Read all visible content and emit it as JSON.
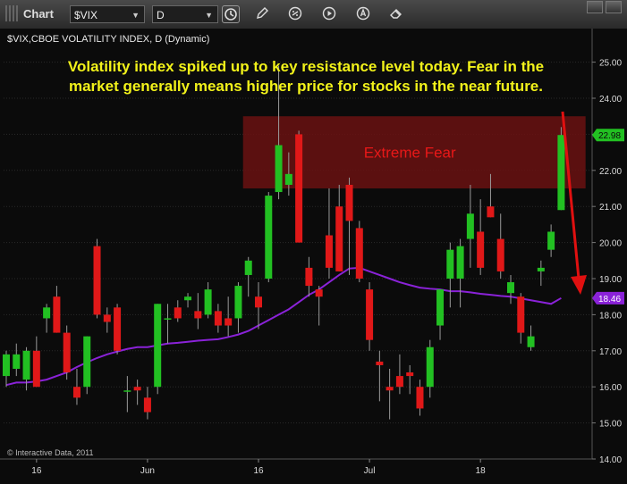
{
  "toolbar": {
    "title": "Chart",
    "symbol": "$VIX",
    "interval": "D",
    "icons": [
      "pin-icon",
      "clock-icon",
      "pencil-icon",
      "link-icon",
      "play-icon",
      "alert-icon",
      "eraser-icon",
      "minimize-icon",
      "maximize-icon"
    ]
  },
  "chart_header": "$VIX,CBOE VOLATILITY INDEX, D (Dynamic)",
  "annotation_line1": "Volatility index spiked up to key resistance level today.  Fear in the",
  "annotation_line2": "market generally means higher price for stocks in the near future.",
  "zone_label": "Extreme Fear",
  "copyright": "© Interactive Data, 2011",
  "colors": {
    "up": "#22c022",
    "down": "#e01818",
    "ma": "#8a22d8",
    "annotation": "#f2f21a",
    "zone_fill": "#6a1212",
    "zone_text": "#e81818",
    "last_price_box": "#22c022",
    "ma_box": "#8a22d8"
  },
  "chart_data": {
    "type": "candlestick",
    "title": "$VIX,CBOE VOLATILITY INDEX, D (Dynamic)",
    "y_ticks": [
      14.0,
      15.0,
      16.0,
      17.0,
      18.0,
      19.0,
      20.0,
      21.0,
      22.0,
      23.0,
      24.0,
      25.0
    ],
    "ylim": [
      13.7,
      25.8
    ],
    "x_tick_labels": [
      {
        "label": "16",
        "index": 3
      },
      {
        "label": "Jun",
        "index": 14
      },
      {
        "label": "16",
        "index": 25
      },
      {
        "label": "Jul",
        "index": 36
      },
      {
        "label": "18",
        "index": 47
      }
    ],
    "resistance_zone": {
      "low": 21.5,
      "high": 23.5,
      "label": "Extreme Fear",
      "from_index": 24,
      "to_index": 56
    },
    "last_price": "22.98",
    "ma_value": "18.46",
    "candles": [
      {
        "o": 16.3,
        "h": 17.0,
        "l": 16.0,
        "c": 16.9
      },
      {
        "o": 16.5,
        "h": 17.2,
        "l": 16.3,
        "c": 16.9
      },
      {
        "o": 16.2,
        "h": 17.1,
        "l": 15.9,
        "c": 17.0
      },
      {
        "o": 17.0,
        "h": 17.4,
        "l": 16.0,
        "c": 16.0
      },
      {
        "o": 17.9,
        "h": 18.3,
        "l": 17.5,
        "c": 18.2
      },
      {
        "o": 18.5,
        "h": 18.8,
        "l": 17.5,
        "c": 17.5
      },
      {
        "o": 17.5,
        "h": 17.7,
        "l": 16.2,
        "c": 16.4
      },
      {
        "o": 16.0,
        "h": 16.5,
        "l": 15.5,
        "c": 15.7
      },
      {
        "o": 16.0,
        "h": 17.4,
        "l": 15.8,
        "c": 17.4
      },
      {
        "o": 19.9,
        "h": 20.1,
        "l": 17.9,
        "c": 18.0
      },
      {
        "o": 18.0,
        "h": 18.2,
        "l": 17.5,
        "c": 17.8
      },
      {
        "o": 18.2,
        "h": 18.3,
        "l": 16.9,
        "c": 17.0
      },
      {
        "o": 15.9,
        "h": 16.3,
        "l": 15.3,
        "c": 15.9
      },
      {
        "o": 16.0,
        "h": 16.2,
        "l": 15.5,
        "c": 15.9
      },
      {
        "o": 15.7,
        "h": 16.0,
        "l": 15.1,
        "c": 15.3
      },
      {
        "o": 16.0,
        "h": 18.3,
        "l": 15.8,
        "c": 18.3
      },
      {
        "o": 17.9,
        "h": 18.3,
        "l": 17.2,
        "c": 17.9
      },
      {
        "o": 18.2,
        "h": 18.4,
        "l": 17.8,
        "c": 17.9
      },
      {
        "o": 18.4,
        "h": 18.6,
        "l": 18.2,
        "c": 18.5
      },
      {
        "o": 18.1,
        "h": 18.6,
        "l": 17.6,
        "c": 17.9
      },
      {
        "o": 18.0,
        "h": 18.9,
        "l": 17.9,
        "c": 18.7
      },
      {
        "o": 18.1,
        "h": 18.3,
        "l": 17.5,
        "c": 17.7
      },
      {
        "o": 17.9,
        "h": 18.5,
        "l": 17.4,
        "c": 17.7
      },
      {
        "o": 17.9,
        "h": 18.9,
        "l": 17.5,
        "c": 18.8
      },
      {
        "o": 19.1,
        "h": 19.6,
        "l": 18.5,
        "c": 19.5
      },
      {
        "o": 18.5,
        "h": 18.9,
        "l": 17.6,
        "c": 18.2
      },
      {
        "o": 19.0,
        "h": 21.4,
        "l": 18.9,
        "c": 21.3
      },
      {
        "o": 21.4,
        "h": 24.9,
        "l": 21.2,
        "c": 22.7
      },
      {
        "o": 21.6,
        "h": 22.5,
        "l": 21.3,
        "c": 21.9
      },
      {
        "o": 23.0,
        "h": 23.1,
        "l": 20.0,
        "c": 20.0
      },
      {
        "o": 19.3,
        "h": 19.6,
        "l": 18.5,
        "c": 18.8
      },
      {
        "o": 18.7,
        "h": 18.8,
        "l": 17.7,
        "c": 18.5
      },
      {
        "o": 20.2,
        "h": 21.5,
        "l": 19.0,
        "c": 19.3
      },
      {
        "o": 21.0,
        "h": 21.6,
        "l": 19.2,
        "c": 19.2
      },
      {
        "o": 21.6,
        "h": 21.8,
        "l": 19.1,
        "c": 20.6
      },
      {
        "o": 20.4,
        "h": 20.6,
        "l": 18.9,
        "c": 19.0
      },
      {
        "o": 18.7,
        "h": 18.9,
        "l": 17.0,
        "c": 17.3
      },
      {
        "o": 16.7,
        "h": 17.0,
        "l": 15.6,
        "c": 16.6
      },
      {
        "o": 16.0,
        "h": 16.5,
        "l": 15.1,
        "c": 15.9
      },
      {
        "o": 16.3,
        "h": 16.9,
        "l": 15.8,
        "c": 16.0
      },
      {
        "o": 16.4,
        "h": 16.6,
        "l": 15.8,
        "c": 16.3
      },
      {
        "o": 16.0,
        "h": 16.2,
        "l": 15.2,
        "c": 15.4
      },
      {
        "o": 16.0,
        "h": 17.3,
        "l": 15.7,
        "c": 17.1
      },
      {
        "o": 17.7,
        "h": 18.7,
        "l": 17.3,
        "c": 18.7
      },
      {
        "o": 19.0,
        "h": 20.0,
        "l": 18.2,
        "c": 19.8
      },
      {
        "o": 19.0,
        "h": 20.1,
        "l": 18.2,
        "c": 19.9
      },
      {
        "o": 20.1,
        "h": 21.6,
        "l": 19.3,
        "c": 20.8
      },
      {
        "o": 20.3,
        "h": 21.2,
        "l": 19.1,
        "c": 19.3
      },
      {
        "o": 21.0,
        "h": 21.9,
        "l": 20.7,
        "c": 20.7
      },
      {
        "o": 20.1,
        "h": 20.8,
        "l": 19.0,
        "c": 19.2
      },
      {
        "o": 18.6,
        "h": 19.1,
        "l": 18.3,
        "c": 18.9
      },
      {
        "o": 18.5,
        "h": 18.6,
        "l": 17.2,
        "c": 17.5
      },
      {
        "o": 17.1,
        "h": 17.7,
        "l": 17.0,
        "c": 17.4
      },
      {
        "o": 19.2,
        "h": 19.5,
        "l": 18.8,
        "c": 19.3
      },
      {
        "o": 19.8,
        "h": 20.5,
        "l": 19.6,
        "c": 20.3
      },
      {
        "o": 20.9,
        "h": 23.2,
        "l": 20.9,
        "c": 22.98
      }
    ],
    "ma": [
      16.05,
      16.12,
      16.12,
      16.15,
      16.2,
      16.3,
      16.4,
      16.55,
      16.68,
      16.8,
      16.9,
      16.98,
      17.05,
      17.1,
      17.1,
      17.15,
      17.2,
      17.22,
      17.25,
      17.28,
      17.3,
      17.32,
      17.38,
      17.45,
      17.55,
      17.7,
      17.85,
      18.0,
      18.15,
      18.35,
      18.55,
      18.7,
      18.9,
      19.1,
      19.28,
      19.3,
      19.2,
      19.1,
      19.0,
      18.9,
      18.82,
      18.75,
      18.72,
      18.7,
      18.65,
      18.65,
      18.62,
      18.58,
      18.55,
      18.52,
      18.5,
      18.45,
      18.4,
      18.35,
      18.3,
      18.46
    ]
  }
}
